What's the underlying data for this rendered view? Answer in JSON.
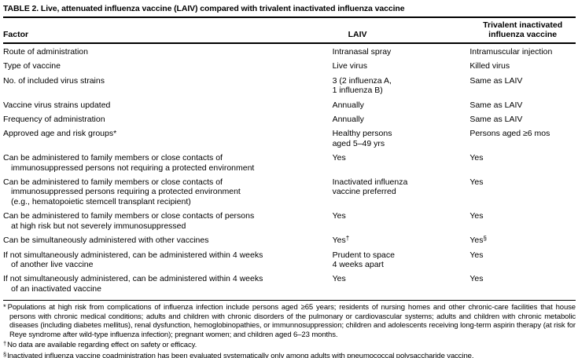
{
  "title": "TABLE 2. Live, attenuated influenza vaccine (LAIV) compared with trivalent inactivated influenza vaccine",
  "headers": {
    "factor": "Factor",
    "laiv": "LAIV",
    "tiv": "Trivalent inactivated\ninfluenza vaccine"
  },
  "rows": [
    {
      "factor": "Route of administration",
      "laiv": "Intranasal spray",
      "tiv": "Intramuscular injection"
    },
    {
      "factor": "Type of vaccine",
      "laiv": "Live virus",
      "tiv": "Killed virus"
    },
    {
      "factor": "No. of included virus strains",
      "laiv": "3 (2 influenza A,\n1 influenza B)",
      "tiv": "Same as LAIV"
    },
    {
      "factor": "Vaccine virus strains updated",
      "laiv": "Annually",
      "tiv": "Same as LAIV"
    },
    {
      "factor": "Frequency of administration",
      "laiv": "Annually",
      "tiv": "Same as LAIV"
    },
    {
      "factor": "Approved age and risk groups*",
      "laiv": "Healthy persons\naged 5–49 yrs",
      "tiv": "Persons aged ≥6 mos"
    },
    {
      "factor": "Can be administered to family members or close contacts of\nimmunosuppressed persons not requiring a protected environment",
      "laiv": "Yes",
      "tiv": "Yes"
    },
    {
      "factor": "Can be administered to family members or close contacts of\nimmunosuppressed persons requiring a protected environment\n(e.g., hematopoietic stemcell transplant recipient)",
      "laiv": "Inactivated influenza\nvaccine preferred",
      "tiv": "Yes"
    },
    {
      "factor": "Can be administered to family members or close contacts of persons\nat high risk but not severely immunosuppressed",
      "laiv": "Yes",
      "tiv": "Yes"
    },
    {
      "factor": "Can be simultaneously administered with other vaccines",
      "laiv": "Yes",
      "laiv_sup": "†",
      "tiv": "Yes",
      "tiv_sup": "§"
    },
    {
      "factor": "If not simultaneously administered, can be administered within 4 weeks\nof another live vaccine",
      "laiv": "Prudent to space\n4 weeks apart",
      "tiv": "Yes"
    },
    {
      "factor": "If not simultaneously administered, can be administered within 4 weeks\nof an inactivated vaccine",
      "laiv": "Yes",
      "tiv": "Yes"
    }
  ],
  "footnotes": {
    "star": {
      "marker": "*",
      "text": "Populations at high risk from complications of influenza infection include persons aged ≥65 years; residents of nursing homes and other chronic-care facilities that house persons with chronic medical conditions; adults and children with chronic disorders of the pulmonary or cardiovascular systems; adults and children with chronic metabolic diseases (including diabetes mellitus), renal dysfunction, hemoglobinopathies, or immunnosuppression; children and adolescents receiving long-term aspirin therapy (at risk for Reye syndrome after wild-type influenza infection); pregnant women; and children aged 6–23 months."
    },
    "dagger": {
      "marker": "†",
      "text": "No data are available regarding effect on safety or efficacy."
    },
    "section": {
      "marker": "§",
      "text": "Inactivated influenza vaccine coadministration has been evaluated systematically only among adults with pneumococcal polysaccharide vaccine."
    }
  },
  "colors": {
    "text": "#000000",
    "background": "#ffffff",
    "rule": "#000000"
  }
}
